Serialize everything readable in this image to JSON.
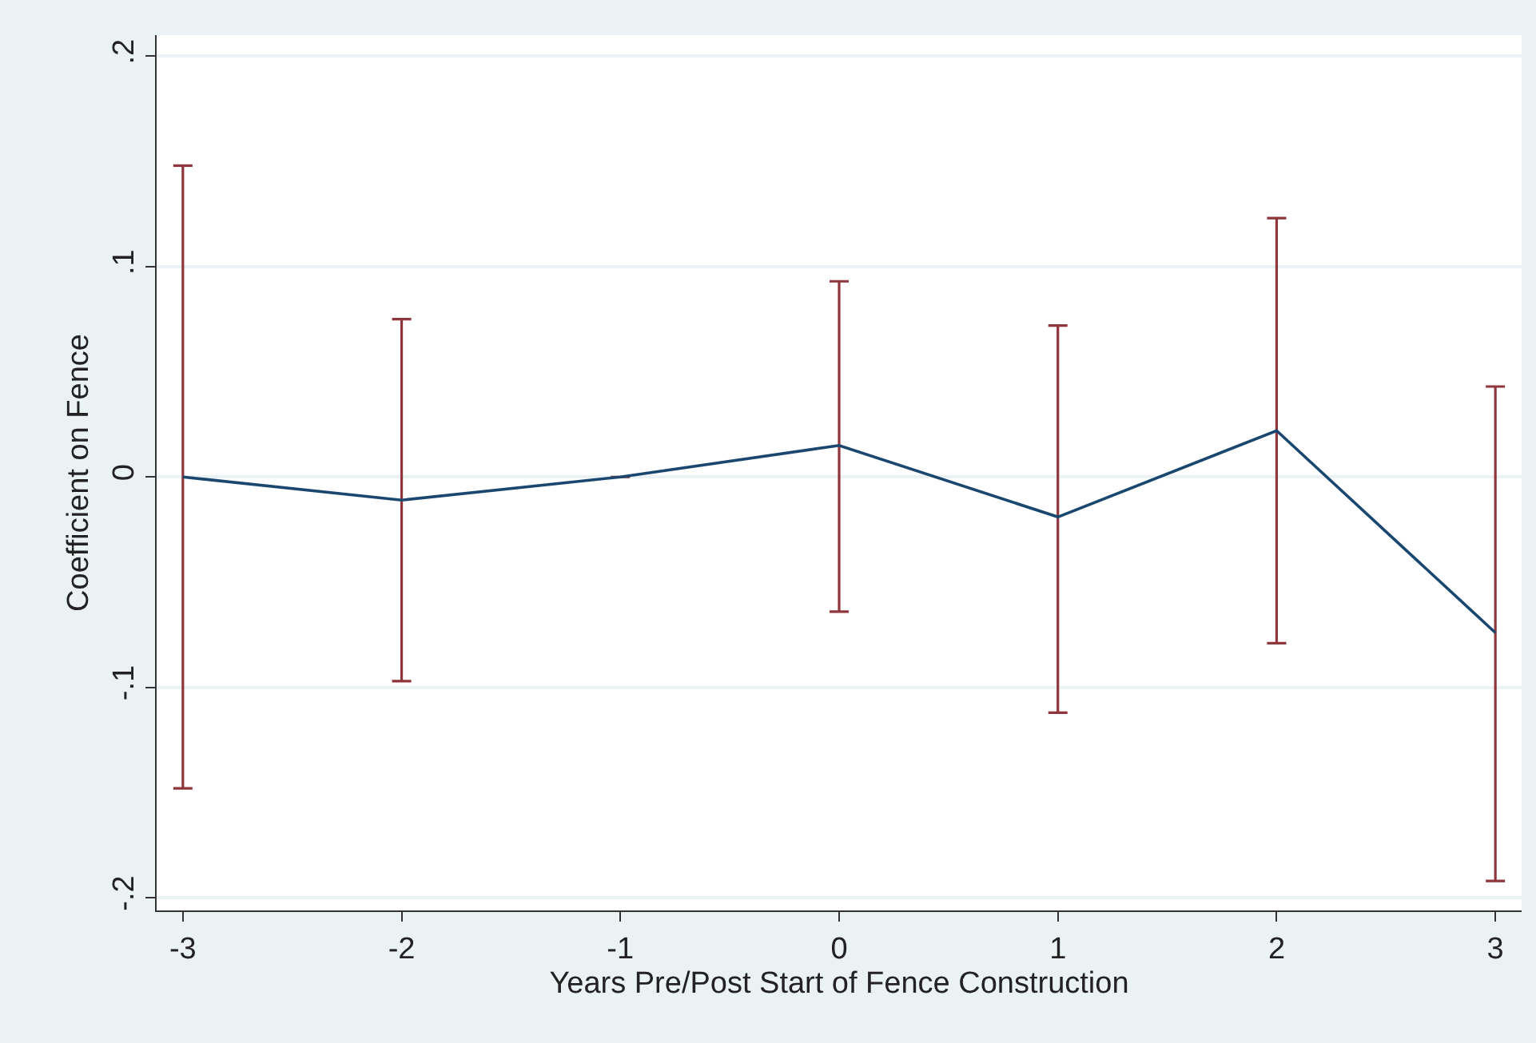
{
  "chart_data": {
    "type": "line",
    "xlabel": "Years Pre/Post Start of Fence Construction",
    "ylabel": "Coefficient on Fence",
    "x": [
      -3,
      -2,
      -1,
      0,
      1,
      2,
      3
    ],
    "series": [
      {
        "color": "#1a476f",
        "values": [
          0,
          -0.011,
          0,
          0.015,
          -0.019,
          0.022,
          -0.074
        ],
        "errors": [
          [
            -0.148,
            0.148
          ],
          [
            -0.097,
            0.075
          ],
          null,
          [
            -0.064,
            0.093
          ],
          [
            -0.112,
            0.072
          ],
          [
            -0.079,
            0.123
          ],
          [
            -0.192,
            0.043
          ]
        ]
      }
    ],
    "xlim": [
      -3.12,
      3.12
    ],
    "xticks": [
      -3,
      -2,
      -1,
      0,
      1,
      2,
      3
    ],
    "ylim": [
      -0.206,
      0.21
    ],
    "yticks": [
      {
        "value": -0.2,
        "label": "-.2"
      },
      {
        "value": -0.1,
        "label": "-.1"
      },
      0,
      {
        "value": 0.1,
        "label": ".1"
      },
      {
        "value": 0.2,
        "label": ".2"
      }
    ],
    "grid": "y",
    "marker": "none",
    "line_style": "solid"
  }
}
